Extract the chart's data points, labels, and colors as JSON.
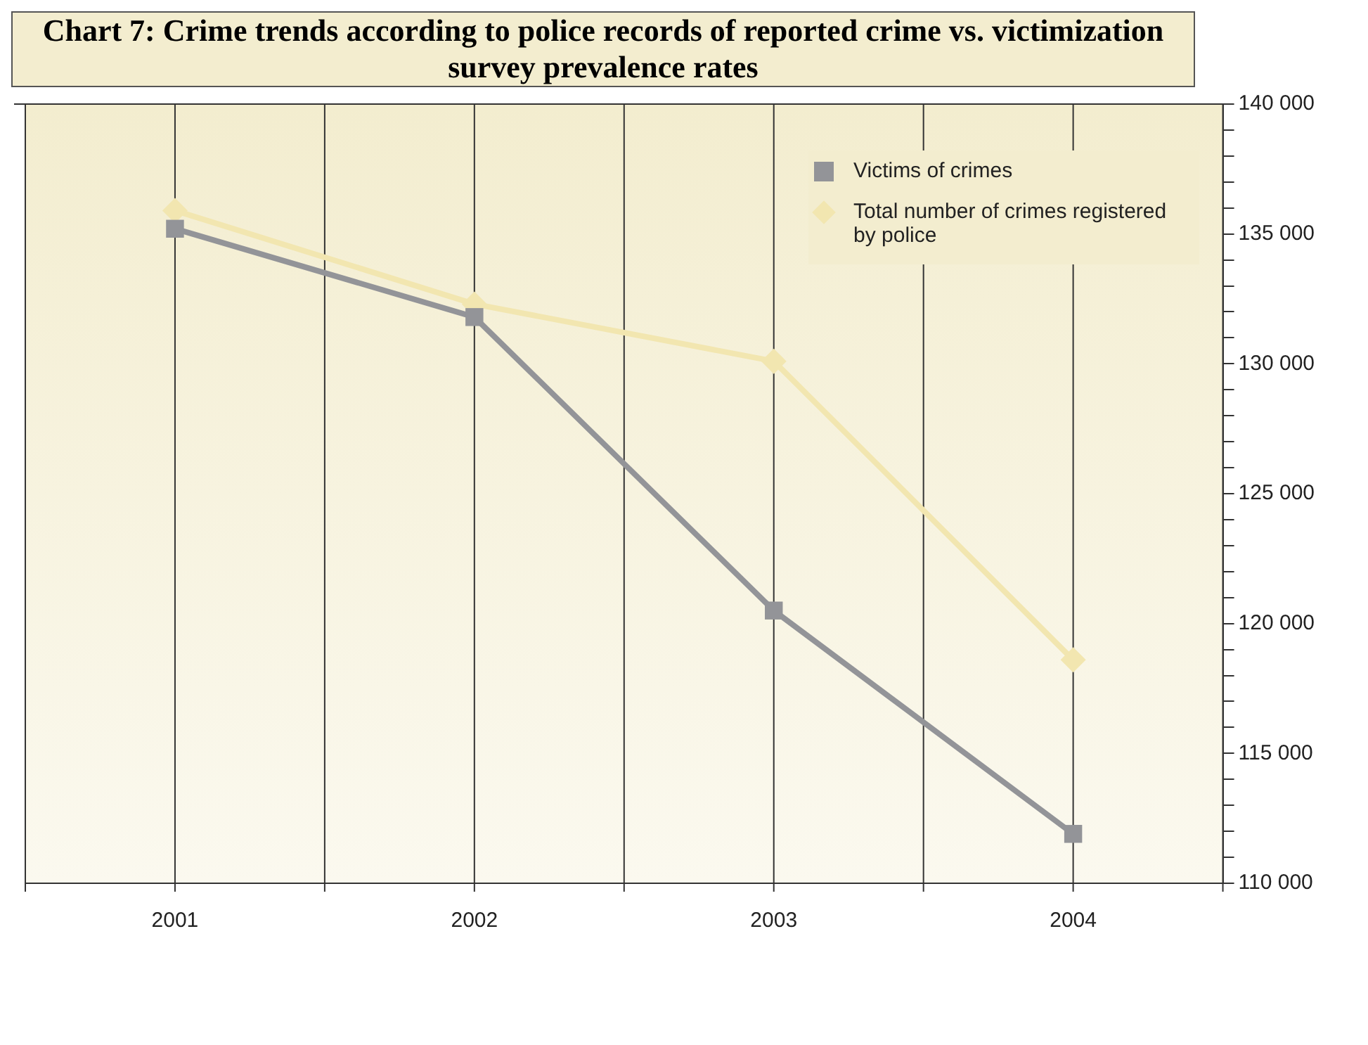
{
  "chart_data": {
    "type": "line",
    "title": "Chart 7:   Crime trends according to police records of reported crime vs. victimization survey prevalence rates",
    "categories": [
      "2001",
      "2002",
      "2003",
      "2004"
    ],
    "series": [
      {
        "name": "Victims of crimes",
        "color": "#939498",
        "values": [
          135200,
          131800,
          120500,
          111900
        ],
        "marker": "square"
      },
      {
        "name": "Total number of crimes registered by police",
        "color": "#f2e6b0",
        "values": [
          135900,
          132300,
          130100,
          118600
        ],
        "marker": "diamond"
      }
    ],
    "ylim": [
      110000,
      140000
    ],
    "yticks": [
      {
        "value": 110000,
        "label": "110 000"
      },
      {
        "value": 111000,
        "label": null
      },
      {
        "value": 112000,
        "label": null
      },
      {
        "value": 113000,
        "label": null
      },
      {
        "value": 114000,
        "label": null
      },
      {
        "value": 115000,
        "label": "115 000"
      },
      {
        "value": 116000,
        "label": null
      },
      {
        "value": 117000,
        "label": null
      },
      {
        "value": 118000,
        "label": null
      },
      {
        "value": 119000,
        "label": null
      },
      {
        "value": 120000,
        "label": "120 000"
      },
      {
        "value": 121000,
        "label": null
      },
      {
        "value": 122000,
        "label": null
      },
      {
        "value": 123000,
        "label": null
      },
      {
        "value": 124000,
        "label": null
      },
      {
        "value": 125000,
        "label": "125 000"
      },
      {
        "value": 126000,
        "label": null
      },
      {
        "value": 127000,
        "label": null
      },
      {
        "value": 128000,
        "label": null
      },
      {
        "value": 129000,
        "label": null
      },
      {
        "value": 130000,
        "label": "130 000"
      },
      {
        "value": 131000,
        "label": null
      },
      {
        "value": 132000,
        "label": null
      },
      {
        "value": 133000,
        "label": null
      },
      {
        "value": 134000,
        "label": null
      },
      {
        "value": 135000,
        "label": "135 000"
      },
      {
        "value": 136000,
        "label": null
      },
      {
        "value": 137000,
        "label": null
      },
      {
        "value": 138000,
        "label": null
      },
      {
        "value": 139000,
        "label": null
      },
      {
        "value": 140000,
        "label": "140 000"
      }
    ],
    "grid": "x",
    "legend": "top right",
    "line_style": "solid"
  }
}
